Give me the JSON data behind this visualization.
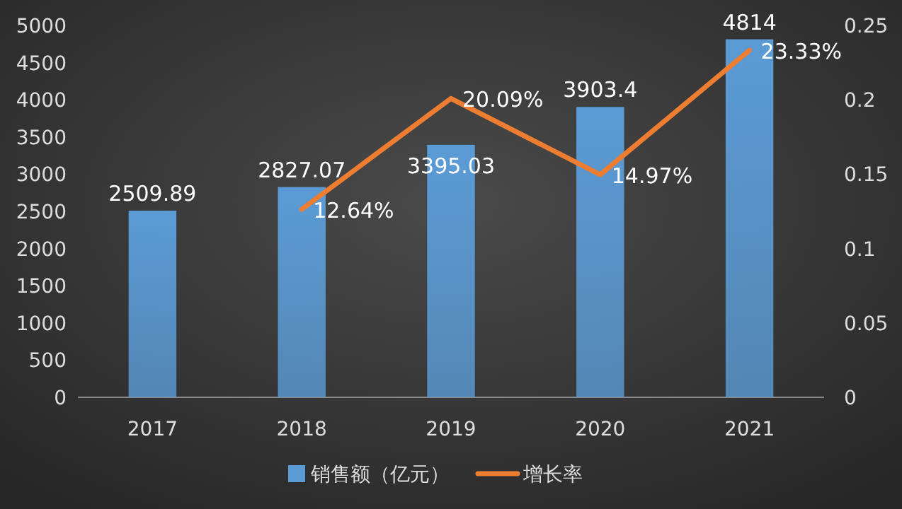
{
  "chart_data": {
    "type": "bar",
    "categories": [
      "2017",
      "2018",
      "2019",
      "2020",
      "2021"
    ],
    "series": [
      {
        "name": "销售额（亿元）",
        "color": "#5b9bd5",
        "values": [
          2509.89,
          2827.07,
          3395.03,
          3903.4,
          4814
        ],
        "value_labels": [
          "2509.89",
          "2827.07",
          "3395.03",
          "3903.4",
          "4814"
        ]
      },
      {
        "name": "增长率",
        "type": "line",
        "axis": "y2",
        "color": "#ed7d31",
        "values": [
          null,
          0.1264,
          0.2009,
          0.1497,
          0.2333
        ],
        "value_labels": [
          null,
          "12.64%",
          "20.09%",
          "14.97%",
          "23.33%"
        ]
      }
    ],
    "ylim": [
      0,
      5000
    ],
    "yticks": [
      0,
      500,
      1000,
      1500,
      2000,
      2500,
      3000,
      3500,
      4000,
      4500,
      5000
    ],
    "y2lim": [
      0,
      0.25
    ],
    "y2ticks": [
      0,
      0.05,
      0.1,
      0.15,
      0.2,
      0.25
    ],
    "legend": "bottom",
    "grid": false
  }
}
